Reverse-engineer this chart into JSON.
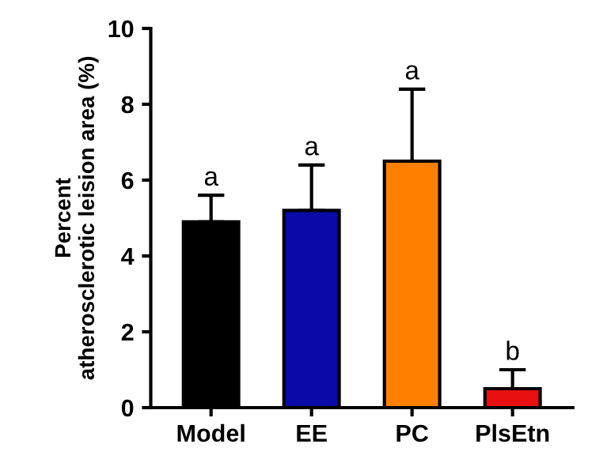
{
  "chart_data": {
    "type": "bar",
    "ylabel": "Percent\natherosclerotic leision area (%)",
    "categories": [
      "Model",
      "EE",
      "PC",
      "PlsEtn"
    ],
    "values": [
      4.9,
      5.2,
      6.5,
      0.5
    ],
    "colors": [
      "#000000",
      "#0a0aa8",
      "#ff8000",
      "#e81010"
    ],
    "errors": [
      [
        4.9,
        5.6
      ],
      [
        5.2,
        6.4
      ],
      [
        6.5,
        8.4
      ],
      [
        0.5,
        1.0
      ]
    ],
    "ylim": [
      0,
      10
    ],
    "yticks": [
      0,
      2,
      4,
      6,
      8,
      10
    ],
    "grid": false,
    "annotations": [
      "a",
      "a",
      "a",
      "b"
    ]
  }
}
